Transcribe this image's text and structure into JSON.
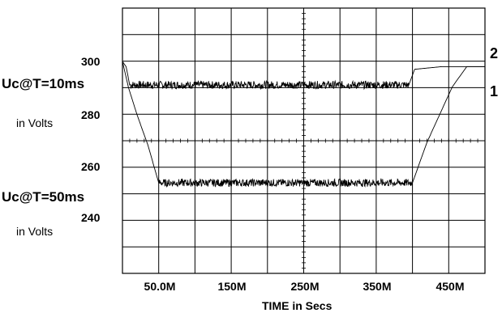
{
  "chart_data": {
    "type": "line",
    "xlabel": "TIME in Secs",
    "x_ticks": [
      "50.0M",
      "150M",
      "250M",
      "350M",
      "450M"
    ],
    "xlim": [
      0,
      500
    ],
    "upper_axis": {
      "label": "Uc@T=10ms",
      "unit_label": "in Volts",
      "ticks": [
        "300",
        "280"
      ],
      "ylim": [
        270,
        320
      ]
    },
    "lower_axis": {
      "label": "Uc@T=50ms",
      "unit_label": "in Volts",
      "ticks": [
        "260",
        "240"
      ],
      "ylim": [
        210,
        270
      ]
    },
    "trace_labels": [
      "2",
      "1"
    ],
    "grid": true,
    "series": [
      {
        "name": "1",
        "axis": "upper",
        "points": [
          [
            0,
            300
          ],
          [
            5,
            298
          ],
          [
            10,
            291
          ],
          [
            395,
            291
          ],
          [
            403,
            297
          ],
          [
            440,
            298
          ],
          [
            500,
            298
          ]
        ]
      },
      {
        "name": "2",
        "axis": "lower",
        "points": [
          [
            0,
            300
          ],
          [
            8,
            290
          ],
          [
            20,
            279
          ],
          [
            35,
            267
          ],
          [
            50,
            252
          ],
          [
            400,
            252
          ],
          [
            420,
            268
          ],
          [
            455,
            290
          ],
          [
            475,
            298
          ],
          [
            500,
            298
          ]
        ]
      }
    ],
    "noise_amplitude_v": 1.5
  }
}
